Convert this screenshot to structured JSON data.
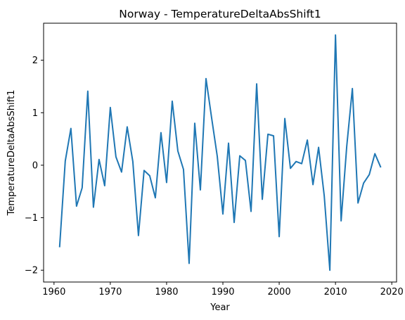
{
  "chart_data": {
    "type": "line",
    "title": "Norway - TemperatureDeltaAbsShift1",
    "xlabel": "Year",
    "ylabel": "TemperatureDeltaAbsShift1",
    "xlim": [
      1958.15,
      2020.85
    ],
    "ylim": [
      -2.225,
      2.705
    ],
    "xticks": [
      1960,
      1970,
      1980,
      1990,
      2000,
      2010,
      2020
    ],
    "xtick_labels": [
      "1960",
      "1970",
      "1980",
      "1990",
      "2000",
      "2010",
      "2020"
    ],
    "yticks": [
      -2,
      -1,
      0,
      1,
      2
    ],
    "ytick_labels": [
      "−2",
      "−1",
      "0",
      "1",
      "2"
    ],
    "grid": false,
    "legend": "none",
    "series": [
      {
        "color": "#1f77b4",
        "x": [
          1961,
          1962,
          1963,
          1964,
          1965,
          1966,
          1967,
          1968,
          1969,
          1970,
          1971,
          1972,
          1973,
          1974,
          1975,
          1976,
          1977,
          1978,
          1979,
          1980,
          1981,
          1982,
          1983,
          1984,
          1985,
          1986,
          1987,
          1988,
          1989,
          1990,
          1991,
          1992,
          1993,
          1994,
          1995,
          1996,
          1997,
          1998,
          1999,
          2000,
          2001,
          2002,
          2003,
          2004,
          2005,
          2006,
          2007,
          2008,
          2009,
          2010,
          2011,
          2012,
          2013,
          2014,
          2015,
          2016,
          2017,
          2018
        ],
        "y": [
          -1.55,
          0.08,
          0.7,
          -0.78,
          -0.43,
          1.41,
          -0.8,
          0.11,
          -0.39,
          1.1,
          0.16,
          -0.13,
          0.73,
          0.07,
          -1.34,
          -0.1,
          -0.2,
          -0.62,
          0.62,
          -0.33,
          1.22,
          0.27,
          -0.08,
          -1.87,
          0.8,
          -0.47,
          1.65,
          0.9,
          0.17,
          -0.93,
          0.42,
          -1.09,
          0.18,
          0.09,
          -0.88,
          1.55,
          -0.65,
          0.59,
          0.56,
          -1.36,
          0.89,
          -0.06,
          0.07,
          0.03,
          0.48,
          -0.37,
          0.34,
          -0.58,
          -2.0,
          2.48,
          -1.06,
          0.36,
          1.46,
          -0.72,
          -0.34,
          -0.18,
          0.22,
          -0.03
        ]
      }
    ]
  }
}
